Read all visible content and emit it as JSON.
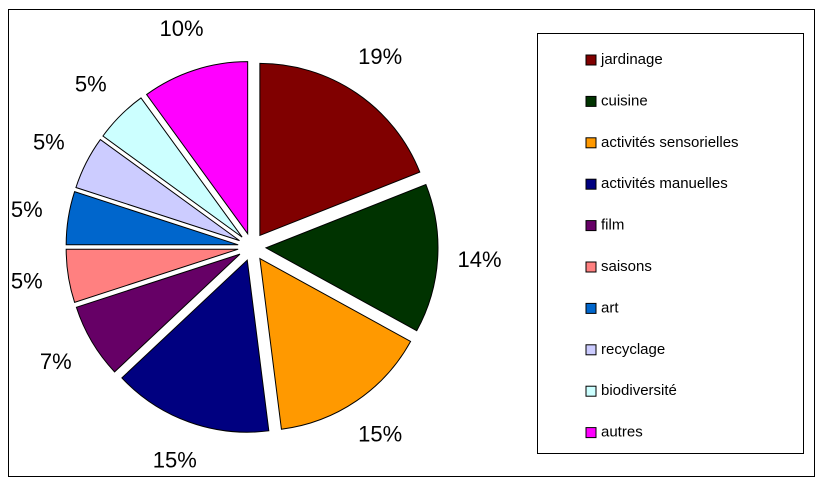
{
  "chart_data": {
    "type": "pie",
    "categories": [
      "jardinage",
      "cuisine",
      "activités sensorielles",
      "activités manuelles",
      "film",
      "saisons",
      "art",
      "recyclage",
      "biodiversité",
      "autres"
    ],
    "values": [
      19,
      14,
      15,
      15,
      7,
      5,
      5,
      5,
      5,
      10
    ],
    "value_labels": [
      "19%",
      "14%",
      "15%",
      "15%",
      "7%",
      "5%",
      "5%",
      "5%",
      "5%",
      "10%"
    ],
    "colors": [
      "#800000",
      "#003300",
      "#ff9900",
      "#000080",
      "#660066",
      "#ff8080",
      "#0066cc",
      "#ccccff",
      "#ccffff",
      "#ff00ff"
    ],
    "legend": "right"
  }
}
